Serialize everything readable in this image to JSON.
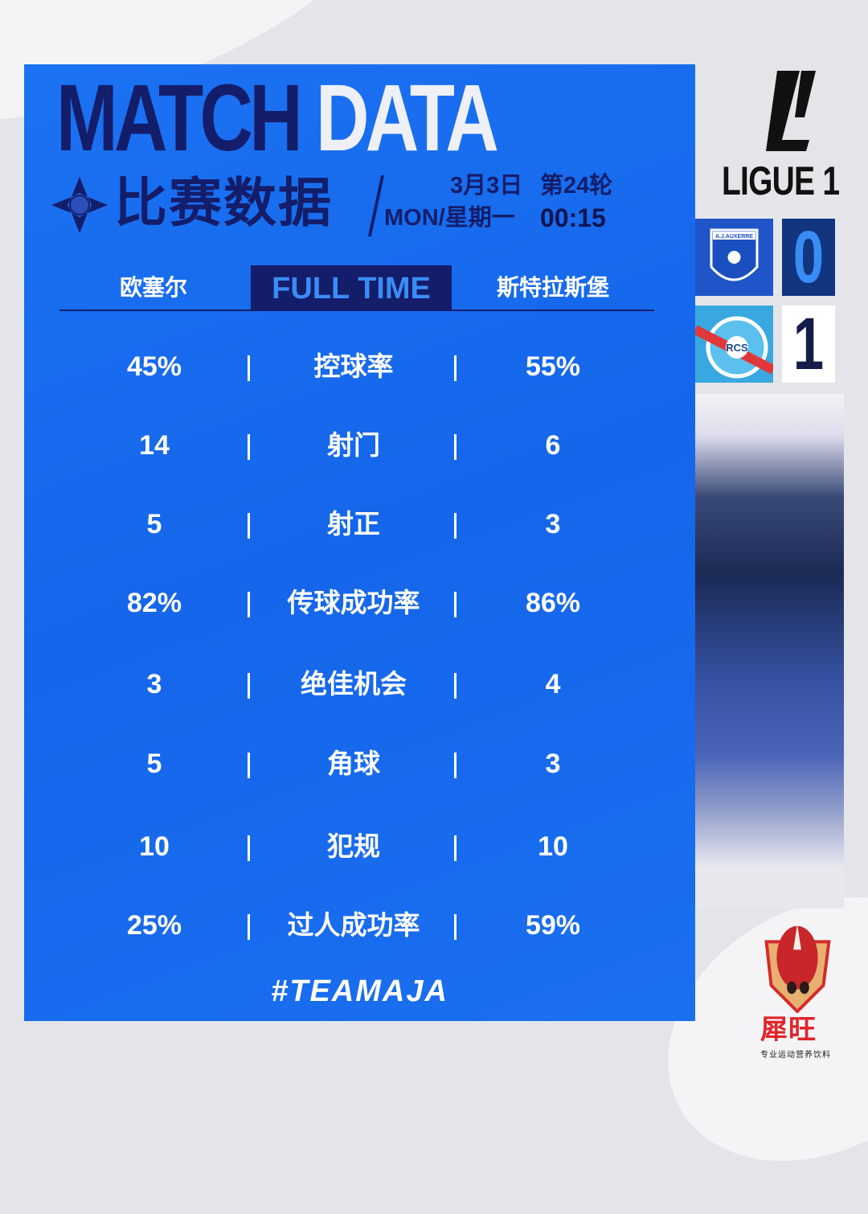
{
  "header": {
    "title_dark": "MATCH",
    "title_light": "DATA",
    "subtitle": "比赛数据",
    "date": "3月3日",
    "round": "第24轮",
    "day": "MON/星期一",
    "time": "00:15"
  },
  "teams": {
    "home": "欧塞尔",
    "away": "斯特拉斯堡",
    "status": "FULL TIME"
  },
  "stats": [
    {
      "label": "控球率",
      "home": "45%",
      "away": "55%"
    },
    {
      "label": "射门",
      "home": "14",
      "away": "6"
    },
    {
      "label": "射正",
      "home": "5",
      "away": "3"
    },
    {
      "label": "传球成功率",
      "home": "82%",
      "away": "86%"
    },
    {
      "label": "绝佳机会",
      "home": "3",
      "away": "4"
    },
    {
      "label": "角球",
      "home": "5",
      "away": "3"
    },
    {
      "label": "犯规",
      "home": "10",
      "away": "10"
    },
    {
      "label": "过人成功率",
      "home": "25%",
      "away": "59%"
    }
  ],
  "hashtag": "#TEAMAJA",
  "league": {
    "name": "LIGUE 1"
  },
  "score": {
    "home_logo_text": "A.J.AUXERRE",
    "home": "0",
    "away_logo_text": "RCS",
    "away": "1"
  },
  "sponsor": {
    "name": "犀旺",
    "tagline": "专业运动营养饮料"
  },
  "colors": {
    "panel": "#1a6ff0",
    "navy": "#141d6a",
    "home_score": "#3a8cf5"
  }
}
